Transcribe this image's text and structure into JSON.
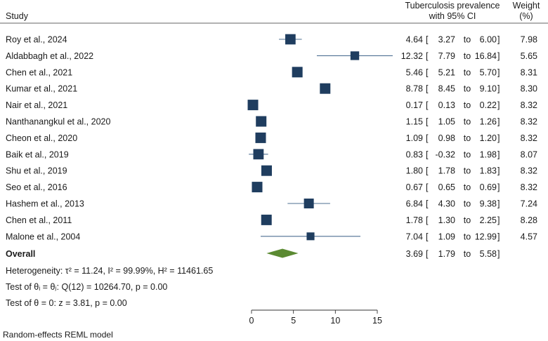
{
  "chart_data": {
    "type": "forest",
    "headers": {
      "study": "Study",
      "effect_line1": "Tuberculosis prevalence",
      "effect_line2": "with 95% CI",
      "weight_line1": "Weight",
      "weight_line2": "(%)"
    },
    "studies": [
      {
        "study": "Roy et al., 2024",
        "estimate": 4.64,
        "lower": 3.27,
        "upper": 6.0,
        "weight": 7.98,
        "est_label": "4.64",
        "lo_label": "3.27",
        "hi_label": "6.00",
        "w_label": "7.98"
      },
      {
        "study": "Aldabbagh et al., 2022",
        "estimate": 12.32,
        "lower": 7.79,
        "upper": 16.84,
        "weight": 5.65,
        "est_label": "12.32",
        "lo_label": "7.79",
        "hi_label": "16.84",
        "w_label": "5.65"
      },
      {
        "study": "Chen et al., 2021",
        "estimate": 5.46,
        "lower": 5.21,
        "upper": 5.7,
        "weight": 8.31,
        "est_label": "5.46",
        "lo_label": "5.21",
        "hi_label": "5.70",
        "w_label": "8.31"
      },
      {
        "study": "Kumar et al., 2021",
        "estimate": 8.78,
        "lower": 8.45,
        "upper": 9.1,
        "weight": 8.3,
        "est_label": "8.78",
        "lo_label": "8.45",
        "hi_label": "9.10",
        "w_label": "8.30"
      },
      {
        "study": "Nair et al., 2021",
        "estimate": 0.17,
        "lower": 0.13,
        "upper": 0.22,
        "weight": 8.32,
        "est_label": "0.17",
        "lo_label": "0.13",
        "hi_label": "0.22",
        "w_label": "8.32"
      },
      {
        "study": "Nanthanangkul et al., 2020",
        "estimate": 1.15,
        "lower": 1.05,
        "upper": 1.26,
        "weight": 8.32,
        "est_label": "1.15",
        "lo_label": "1.05",
        "hi_label": "1.26",
        "w_label": "8.32"
      },
      {
        "study": "Cheon et al., 2020",
        "estimate": 1.09,
        "lower": 0.98,
        "upper": 1.2,
        "weight": 8.32,
        "est_label": "1.09",
        "lo_label": "0.98",
        "hi_label": "1.20",
        "w_label": "8.32"
      },
      {
        "study": "Baik et al., 2019",
        "estimate": 0.83,
        "lower": -0.32,
        "upper": 1.98,
        "weight": 8.07,
        "est_label": "0.83",
        "lo_label": "-0.32",
        "hi_label": "1.98",
        "w_label": "8.07"
      },
      {
        "study": "Shu et al., 2019",
        "estimate": 1.8,
        "lower": 1.78,
        "upper": 1.83,
        "weight": 8.32,
        "est_label": "1.80",
        "lo_label": "1.78",
        "hi_label": "1.83",
        "w_label": "8.32"
      },
      {
        "study": "Seo et al., 2016",
        "estimate": 0.67,
        "lower": 0.65,
        "upper": 0.69,
        "weight": 8.32,
        "est_label": "0.67",
        "lo_label": "0.65",
        "hi_label": "0.69",
        "w_label": "8.32"
      },
      {
        "study": "Hashem et al., 2013",
        "estimate": 6.84,
        "lower": 4.3,
        "upper": 9.38,
        "weight": 7.24,
        "est_label": "6.84",
        "lo_label": "4.30",
        "hi_label": "9.38",
        "w_label": "7.24"
      },
      {
        "study": "Chen et al., 2011",
        "estimate": 1.78,
        "lower": 1.3,
        "upper": 2.25,
        "weight": 8.28,
        "est_label": "1.78",
        "lo_label": "1.30",
        "hi_label": "2.25",
        "w_label": "8.28"
      },
      {
        "study": "Malone et al., 2004",
        "estimate": 7.04,
        "lower": 1.09,
        "upper": 12.99,
        "weight": 4.57,
        "est_label": "7.04",
        "lo_label": "1.09",
        "hi_label": "12.99",
        "w_label": "4.57"
      }
    ],
    "overall": {
      "label": "Overall",
      "estimate": 3.69,
      "lower": 1.79,
      "upper": 5.58,
      "est_label": "3.69",
      "lo_label": "1.79",
      "hi_label": "5.58"
    },
    "ci_separator": "to",
    "heterogeneity": "Heterogeneity: τ² = 11.24, I² = 99.99%, H² = 11461.65",
    "test_equal": "Test of θᵢ = θⱼ: Q(12) = 10264.70, p = 0.00",
    "test_zero": "Test of θ = 0: z = 3.81, p = 0.00",
    "footnote": "Random-effects REML model",
    "xlim": [
      0,
      15
    ],
    "xticks": [
      0,
      5,
      10,
      15
    ],
    "colors": {
      "marker": "#1f3d5f",
      "ci_line": "#4e6f92",
      "diamond": "#5b8a32",
      "text": "#1a1a1a"
    }
  }
}
